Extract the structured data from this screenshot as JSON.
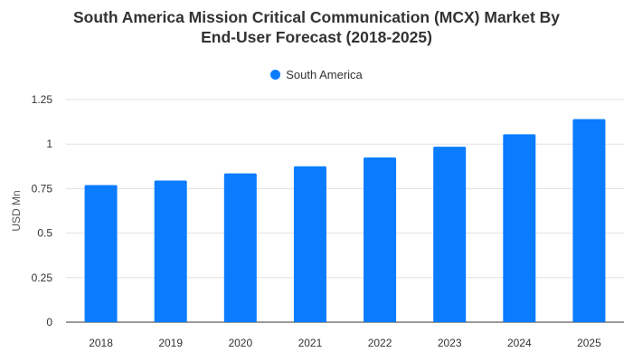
{
  "chart_data": {
    "type": "bar",
    "title_line1": "South America Mission Critical Communication (MCX) Market By",
    "title_line2": "End-User Forecast (2018-2025)",
    "xlabel": "",
    "ylabel": "USD Mn",
    "categories": [
      "2018",
      "2019",
      "2020",
      "2021",
      "2022",
      "2023",
      "2024",
      "2025"
    ],
    "series": [
      {
        "name": "South America",
        "values": [
          0.77,
          0.795,
          0.835,
          0.875,
          0.925,
          0.985,
          1.055,
          1.14
        ]
      }
    ],
    "ylim": [
      0,
      1.25
    ],
    "yticks": [
      "0",
      "0.25",
      "0.5",
      "0.75",
      "1",
      "1.25"
    ],
    "grid": true,
    "legend_position": "top-center",
    "bar_color": "#0a7cff"
  }
}
